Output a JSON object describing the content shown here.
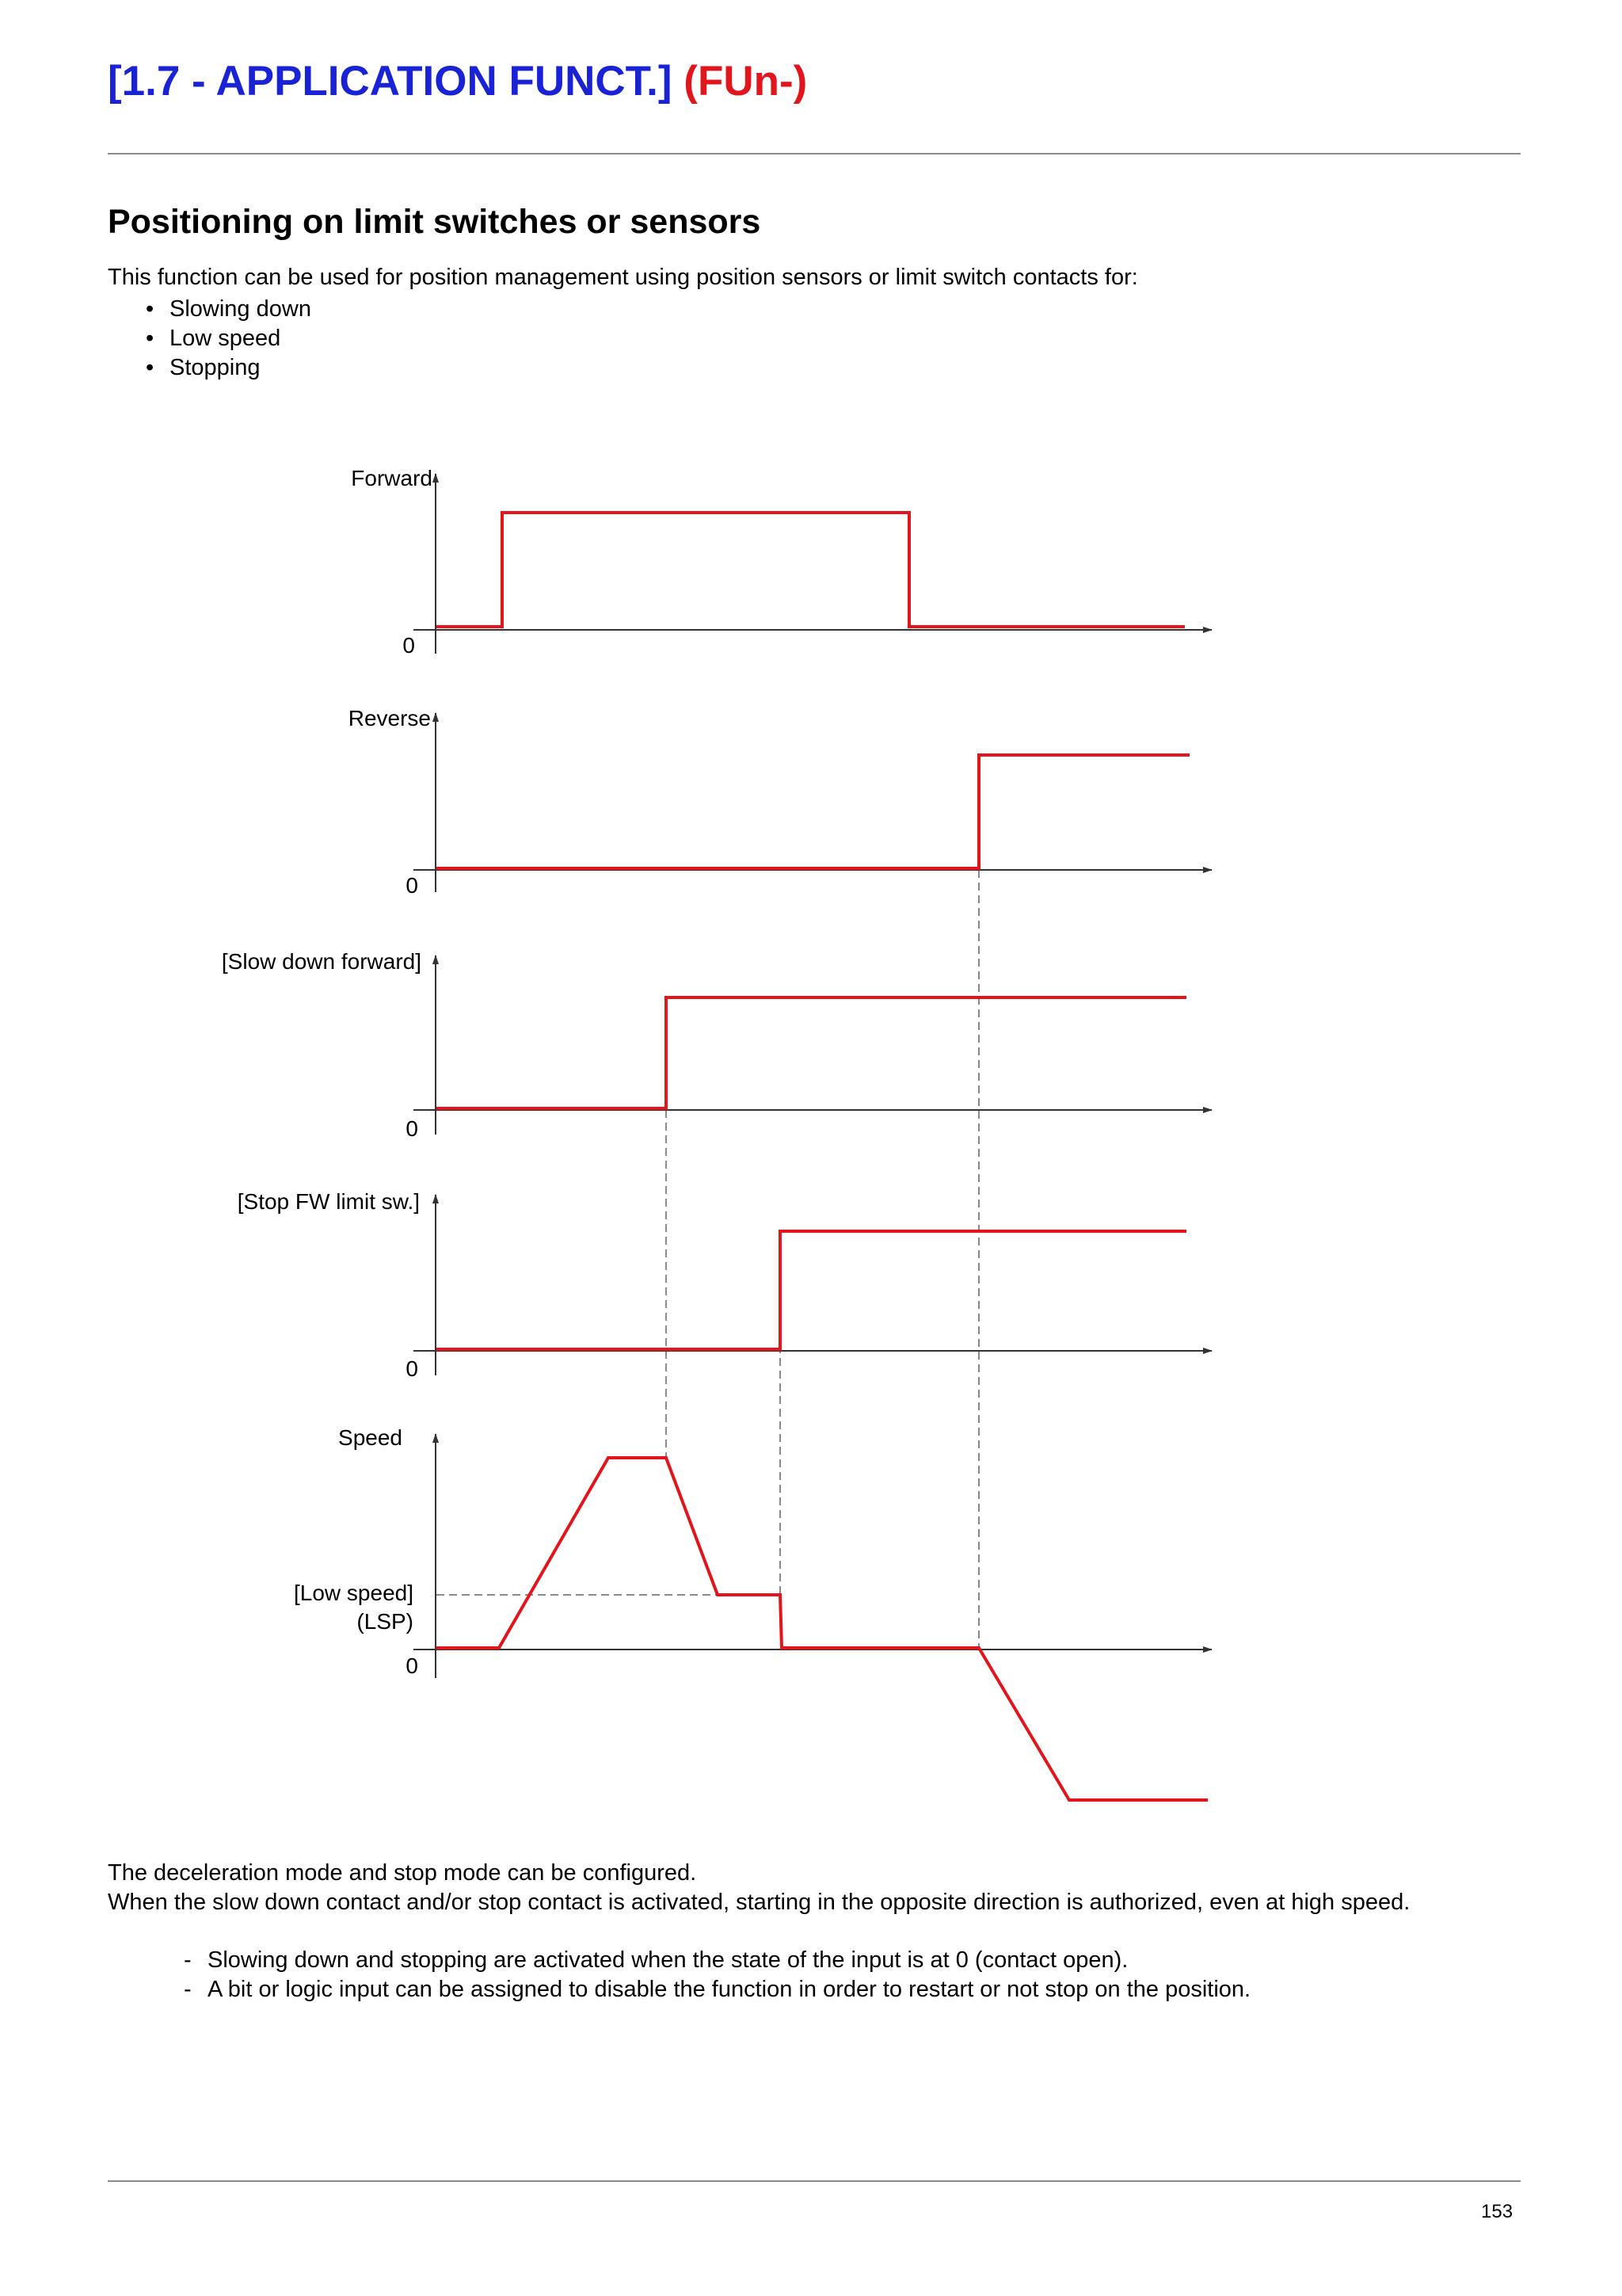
{
  "header": {
    "title_main": "[1.7 - APPLICATION FUNCT.]",
    "title_code": "(FUn-)"
  },
  "section": {
    "heading": "Positioning on limit switches or sensors",
    "intro": "This function can be used for position management using position sensors or limit switch contacts for:",
    "bullets": [
      "Slowing down",
      "Low speed",
      "Stopping"
    ]
  },
  "diagram": {
    "zero_label": "0",
    "signals": {
      "forward": "Forward",
      "reverse": "Reverse",
      "slow_down_forward": "[Slow down forward]",
      "stop_fw_limit": "[Stop FW limit sw.]",
      "speed": "Speed",
      "low_speed": "[Low speed]",
      "lsp": "(LSP)"
    },
    "colors": {
      "trace": "#e2141c",
      "axis": "#333333",
      "guide": "#8a8a8a"
    }
  },
  "notes": {
    "line1": "The deceleration mode and stop mode can be configured.",
    "line2": "When the slow down contact and/or stop contact is activated, starting in the opposite direction is authorized, even at high speed.",
    "items": [
      "Slowing down and stopping are activated when the state of the input is at 0 (contact open).",
      "A bit or logic input can be assigned to disable the function in order to restart or not stop on the position."
    ]
  },
  "footer": {
    "page_number": "153"
  }
}
